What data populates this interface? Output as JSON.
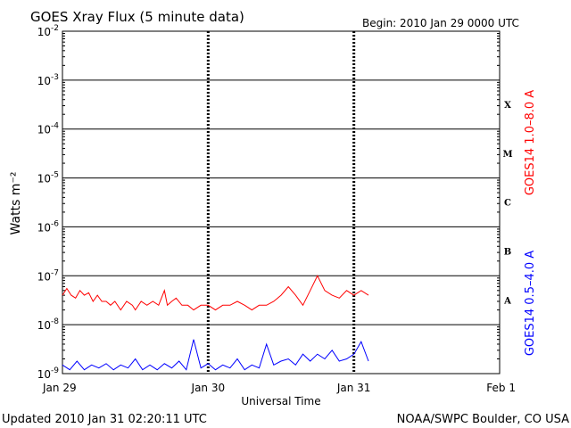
{
  "header": {
    "title": "GOES Xray Flux (5 minute data)",
    "begin": "Begin:  2010 Jan 29 0000 UTC"
  },
  "footer": {
    "updated": "Updated 2010 Jan 31 02:20:11 UTC",
    "source": "NOAA/SWPC Boulder, CO USA"
  },
  "chart_data": {
    "type": "line",
    "title": "GOES Xray Flux (5 minute data)",
    "xlabel": "Universal Time",
    "ylabel": "Watts m⁻²",
    "x_ticks": [
      "Jan 29",
      "Jan 30",
      "Jan 31",
      "Feb 1"
    ],
    "xlim_days": [
      0,
      3
    ],
    "y_scale": "log",
    "ylim": [
      1e-09,
      0.01
    ],
    "y_ticks": [
      {
        "base": "10",
        "exp": "-9"
      },
      {
        "base": "10",
        "exp": "-8"
      },
      {
        "base": "10",
        "exp": "-7"
      },
      {
        "base": "10",
        "exp": "-6"
      },
      {
        "base": "10",
        "exp": "-5"
      },
      {
        "base": "10",
        "exp": "-4"
      },
      {
        "base": "10",
        "exp": "-3"
      },
      {
        "base": "10",
        "exp": "-2"
      }
    ],
    "flare_classes": [
      "A",
      "B",
      "C",
      "M",
      "X"
    ],
    "grid": true,
    "series": [
      {
        "name": "GOES14 1.0–8.0 A",
        "color": "#ff0000",
        "x": [
          0.0,
          0.03,
          0.06,
          0.09,
          0.12,
          0.15,
          0.18,
          0.21,
          0.24,
          0.27,
          0.3,
          0.33,
          0.36,
          0.4,
          0.44,
          0.48,
          0.5,
          0.54,
          0.58,
          0.62,
          0.66,
          0.7,
          0.72,
          0.75,
          0.78,
          0.82,
          0.86,
          0.9,
          0.95,
          1.0,
          1.05,
          1.1,
          1.15,
          1.2,
          1.25,
          1.3,
          1.35,
          1.4,
          1.45,
          1.5,
          1.55,
          1.6,
          1.65,
          1.7,
          1.75,
          1.8,
          1.85,
          1.9,
          1.95,
          2.0,
          2.05,
          2.1
        ],
        "values": [
          4e-08,
          5.5e-08,
          4e-08,
          3.5e-08,
          5e-08,
          4e-08,
          4.5e-08,
          3e-08,
          4e-08,
          3e-08,
          3e-08,
          2.5e-08,
          3e-08,
          2e-08,
          3e-08,
          2.5e-08,
          2e-08,
          3e-08,
          2.5e-08,
          3e-08,
          2.5e-08,
          5e-08,
          2.5e-08,
          3e-08,
          3.5e-08,
          2.5e-08,
          2.5e-08,
          2e-08,
          2.5e-08,
          2.5e-08,
          2e-08,
          2.5e-08,
          2.5e-08,
          3e-08,
          2.5e-08,
          2e-08,
          2.5e-08,
          2.5e-08,
          3e-08,
          4e-08,
          6e-08,
          4e-08,
          2.5e-08,
          5e-08,
          1e-07,
          5e-08,
          4e-08,
          3.5e-08,
          5e-08,
          4e-08,
          5e-08,
          4e-08
        ]
      },
      {
        "name": "GOES14 0.5–4.0 A",
        "color": "#0000ff",
        "x": [
          0.0,
          0.05,
          0.1,
          0.15,
          0.2,
          0.25,
          0.3,
          0.35,
          0.4,
          0.45,
          0.5,
          0.55,
          0.6,
          0.65,
          0.7,
          0.75,
          0.8,
          0.85,
          0.9,
          0.95,
          1.0,
          1.05,
          1.1,
          1.15,
          1.2,
          1.25,
          1.3,
          1.35,
          1.4,
          1.45,
          1.5,
          1.55,
          1.6,
          1.65,
          1.7,
          1.75,
          1.8,
          1.85,
          1.9,
          1.95,
          2.0,
          2.05,
          2.1
        ],
        "values": [
          1.5e-09,
          1.2e-09,
          1.8e-09,
          1.2e-09,
          1.5e-09,
          1.3e-09,
          1.6e-09,
          1.2e-09,
          1.5e-09,
          1.3e-09,
          2e-09,
          1.2e-09,
          1.5e-09,
          1.2e-09,
          1.6e-09,
          1.3e-09,
          1.8e-09,
          1.2e-09,
          5e-09,
          1.3e-09,
          1.6e-09,
          1.2e-09,
          1.5e-09,
          1.3e-09,
          2e-09,
          1.2e-09,
          1.5e-09,
          1.3e-09,
          4e-09,
          1.5e-09,
          1.8e-09,
          2e-09,
          1.5e-09,
          2.5e-09,
          1.8e-09,
          2.5e-09,
          2e-09,
          3e-09,
          1.8e-09,
          2e-09,
          2.5e-09,
          4.5e-09,
          1.8e-09
        ]
      }
    ]
  }
}
